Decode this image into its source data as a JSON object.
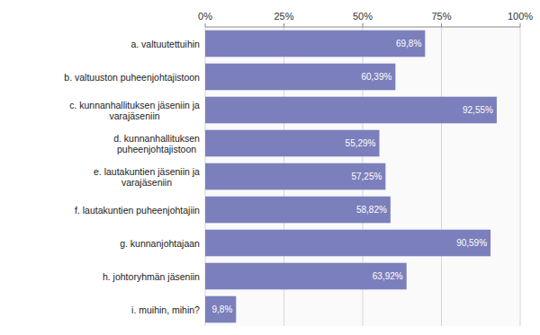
{
  "chart_data": {
    "type": "bar",
    "orientation": "horizontal",
    "categories": [
      "i. muihin, mihin?",
      "h. johtoryhmän jäseniin",
      "g. kunnanjohtajaan",
      "f. lautakuntien puheenjohtajiin",
      "e. lautakuntien jäseniin ja\nvarajäseniin",
      "d. kunnanhallituksen\npuheenjohtajistoon",
      "c. kunnanhallituksen jäseniin ja\nvarajäseniin",
      "b. valtuuston puheenjohtajistoon",
      "a. valtuutettuihin"
    ],
    "values": [
      9.8,
      63.92,
      90.59,
      58.82,
      57.25,
      55.29,
      92.55,
      60.39,
      69.8
    ],
    "value_labels": [
      "9,8%",
      "63,92%",
      "90,59%",
      "58,82%",
      "57,25%",
      "55,29%",
      "92,55%",
      "60,39%",
      "69,8%"
    ],
    "data_labels": true,
    "color": "#7b7fbc",
    "xlim": [
      0,
      100
    ],
    "xticks": [
      {
        "value": 0,
        "label": "0%"
      },
      {
        "value": 25,
        "label": "25%"
      },
      {
        "value": 50,
        "label": "50%"
      },
      {
        "value": 75,
        "label": "75%"
      },
      {
        "value": 100,
        "label": "100%"
      }
    ],
    "grid": true
  }
}
